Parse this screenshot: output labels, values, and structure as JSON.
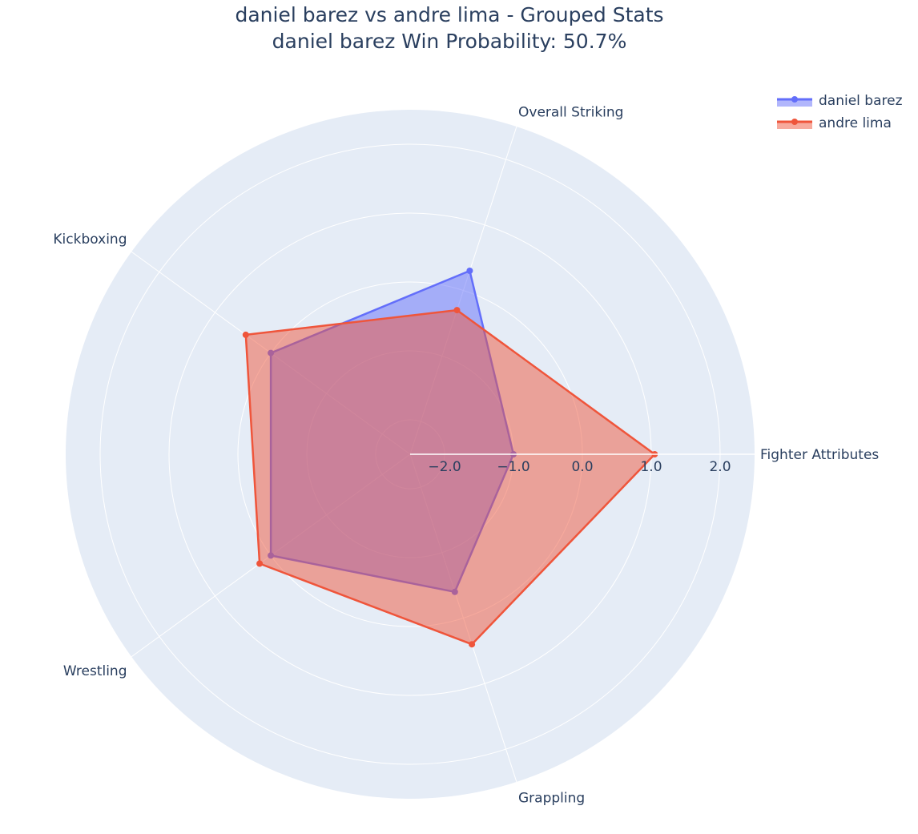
{
  "chart_data": {
    "type": "radar",
    "title": "daniel barez vs andre lima - Grouped Stats",
    "subtitle": "daniel barez Win Probability: 50.7%",
    "categories": [
      "Fighter Attributes",
      "Overall Striking",
      "Kickboxing",
      "Wrestling",
      "Grappling"
    ],
    "radial_range": [
      -2.5,
      2.5
    ],
    "radial_ticks": [
      -2.0,
      -1.0,
      0.0,
      1.0,
      2.0
    ],
    "radial_tick_labels": [
      "−2.0",
      "−1.0",
      "0.0",
      "1.0",
      "2.0"
    ],
    "series": [
      {
        "name": "daniel barez",
        "values": [
          -1.0,
          0.3,
          0.0,
          0.0,
          -0.4
        ],
        "color": "#636efa",
        "fill": "rgba(99,110,250,0.5)"
      },
      {
        "name": "andre lima",
        "values": [
          1.05,
          -0.3,
          0.45,
          0.2,
          0.4
        ],
        "color": "#ef553b",
        "fill": "rgba(239,85,59,0.5)"
      }
    ],
    "legend": "top-right",
    "background_color": "#e5ecf6",
    "grid_color": "#ffffff"
  }
}
